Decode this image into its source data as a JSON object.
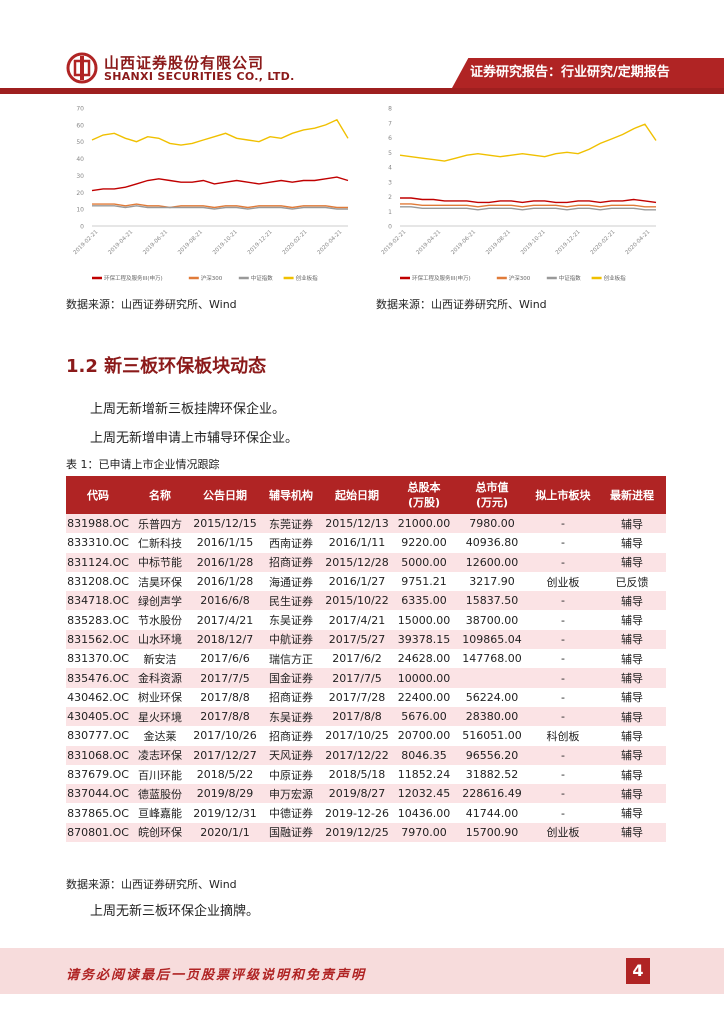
{
  "header": {
    "company_cn": "山西证券股份有限公司",
    "company_en": "SHANXI SECURITIES CO., LTD.",
    "report_tag": "证券研究报告：行业研究/定期报告",
    "brand_color": "#b02424"
  },
  "charts": {
    "chart_data": [
      {
        "type": "line",
        "y_ticks": [
          "70",
          "60",
          "50",
          "40",
          "30",
          "20",
          "10",
          "0"
        ],
        "ylim": [
          0,
          70
        ],
        "x_ticks": [
          "2019-02-21",
          "2019-04-21",
          "2019-06-21",
          "2019-08-21",
          "2019-10-21",
          "2019-12-21",
          "2020-02-21",
          "2020-04-21"
        ],
        "series": [
          {
            "name": "环保工程及服务III(申万)",
            "color": "#c00000",
            "values": [
              21,
              22,
              22,
              23,
              25,
              27,
              28,
              27,
              26,
              26,
              27,
              25,
              26,
              27,
              26,
              25,
              26,
              27,
              26,
              27,
              27,
              28,
              29,
              27
            ]
          },
          {
            "name": "沪深300",
            "color": "#e07b39",
            "values": [
              13,
              13,
              13,
              12,
              13,
              12,
              12,
              11,
              12,
              12,
              12,
              11,
              12,
              12,
              11,
              12,
              12,
              12,
              11,
              12,
              12,
              12,
              11,
              11
            ]
          },
          {
            "name": "中证指数",
            "color": "#999999",
            "values": [
              12,
              12,
              12,
              11,
              12,
              11,
              11,
              11,
              11,
              11,
              11,
              10,
              11,
              11,
              10,
              11,
              11,
              11,
              10,
              11,
              11,
              11,
              10,
              10
            ]
          },
          {
            "name": "创业板指",
            "color": "#f0c000",
            "values": [
              51,
              54,
              55,
              52,
              50,
              53,
              52,
              49,
              48,
              49,
              51,
              53,
              55,
              52,
              51,
              50,
              53,
              52,
              55,
              57,
              58,
              60,
              63,
              52
            ]
          }
        ]
      },
      {
        "type": "line",
        "y_ticks": [
          "8",
          "7",
          "6",
          "5",
          "4",
          "3",
          "2",
          "1",
          "0"
        ],
        "ylim": [
          0,
          8
        ],
        "x_ticks": [
          "2019-02-21",
          "2019-04-21",
          "2019-06-21",
          "2019-08-21",
          "2019-10-21",
          "2019-12-21",
          "2020-02-21",
          "2020-04-21"
        ],
        "series": [
          {
            "name": "环保工程及服务III(申万)",
            "color": "#c00000",
            "values": [
              1.9,
              1.9,
              1.8,
              1.8,
              1.7,
              1.7,
              1.7,
              1.6,
              1.6,
              1.7,
              1.7,
              1.6,
              1.7,
              1.7,
              1.6,
              1.6,
              1.7,
              1.7,
              1.6,
              1.7,
              1.7,
              1.8,
              1.7,
              1.6
            ]
          },
          {
            "name": "沪深300",
            "color": "#e07b39",
            "values": [
              1.5,
              1.5,
              1.4,
              1.4,
              1.4,
              1.4,
              1.4,
              1.3,
              1.4,
              1.4,
              1.4,
              1.3,
              1.4,
              1.4,
              1.4,
              1.3,
              1.4,
              1.4,
              1.3,
              1.4,
              1.4,
              1.4,
              1.3,
              1.3
            ]
          },
          {
            "name": "中证指数",
            "color": "#999999",
            "values": [
              1.3,
              1.3,
              1.2,
              1.2,
              1.2,
              1.2,
              1.2,
              1.1,
              1.2,
              1.2,
              1.2,
              1.1,
              1.2,
              1.2,
              1.2,
              1.1,
              1.2,
              1.2,
              1.1,
              1.2,
              1.2,
              1.2,
              1.1,
              1.1
            ]
          },
          {
            "name": "创业板指",
            "color": "#f0c000",
            "values": [
              4.8,
              4.7,
              4.6,
              4.5,
              4.4,
              4.6,
              4.8,
              4.9,
              4.8,
              4.7,
              4.8,
              4.9,
              4.8,
              4.7,
              4.9,
              5.0,
              4.9,
              5.2,
              5.6,
              5.9,
              6.2,
              6.6,
              6.9,
              5.8
            ]
          }
        ]
      }
    ],
    "source_left": "数据来源：山西证券研究所、Wind",
    "source_right": "数据来源：山西证券研究所、Wind"
  },
  "section": {
    "title": "1.2  新三板环保板块动态",
    "para1": "上周无新增新三板挂牌环保企业。",
    "para2": "上周无新增申请上市辅导环保企业。",
    "table_caption": "表 1：已申请上市企业情况跟踪"
  },
  "table": {
    "headers": [
      "代码",
      "名称",
      "公告日期",
      "辅导机构",
      "起始日期",
      "总股本\n(万股)",
      "总市值\n(万元)",
      "拟上市板块",
      "最新进程"
    ],
    "rows": [
      [
        "831988.OC",
        "乐普四方",
        "2015/12/15",
        "东莞证券",
        "2015/12/13",
        "21000.00",
        "7980.00",
        "-",
        "辅导"
      ],
      [
        "833310.OC",
        "仁新科技",
        "2016/1/15",
        "西南证券",
        "2016/1/11",
        "9220.00",
        "40936.80",
        "-",
        "辅导"
      ],
      [
        "831124.OC",
        "中标节能",
        "2016/1/28",
        "招商证券",
        "2015/12/28",
        "5000.00",
        "12600.00",
        "-",
        "辅导"
      ],
      [
        "831208.OC",
        "洁昊环保",
        "2016/1/28",
        "海通证券",
        "2016/1/27",
        "9751.21",
        "3217.90",
        "创业板",
        "已反馈"
      ],
      [
        "834718.OC",
        "绿创声学",
        "2016/6/8",
        "民生证券",
        "2015/10/22",
        "6335.00",
        "15837.50",
        "-",
        "辅导"
      ],
      [
        "835283.OC",
        "节水股份",
        "2017/4/21",
        "东吴证券",
        "2017/4/21",
        "15000.00",
        "38700.00",
        "-",
        "辅导"
      ],
      [
        "831562.OC",
        "山水环境",
        "2018/12/7",
        "中航证券",
        "2017/5/27",
        "39378.15",
        "109865.04",
        "-",
        "辅导"
      ],
      [
        "831370.OC",
        "新安洁",
        "2017/6/6",
        "瑞信方正",
        "2017/6/2",
        "24628.00",
        "147768.00",
        "-",
        "辅导"
      ],
      [
        "835476.OC",
        "金科资源",
        "2017/7/5",
        "国金证券",
        "2017/7/5",
        "10000.00",
        "",
        "-",
        "辅导"
      ],
      [
        "430462.OC",
        "树业环保",
        "2017/8/8",
        "招商证券",
        "2017/7/28",
        "22400.00",
        "56224.00",
        "-",
        "辅导"
      ],
      [
        "430405.OC",
        "星火环境",
        "2017/8/8",
        "东吴证券",
        "2017/8/8",
        "5676.00",
        "28380.00",
        "-",
        "辅导"
      ],
      [
        "830777.OC",
        "金达莱",
        "2017/10/26",
        "招商证券",
        "2017/10/25",
        "20700.00",
        "516051.00",
        "科创板",
        "辅导"
      ],
      [
        "831068.OC",
        "凌志环保",
        "2017/12/27",
        "天风证券",
        "2017/12/22",
        "8046.35",
        "96556.20",
        "-",
        "辅导"
      ],
      [
        "837679.OC",
        "百川环能",
        "2018/5/22",
        "中原证券",
        "2018/5/18",
        "11852.24",
        "31882.52",
        "-",
        "辅导"
      ],
      [
        "837044.OC",
        "德蓝股份",
        "2019/8/29",
        "申万宏源",
        "2019/8/27",
        "12032.45",
        "228616.49",
        "-",
        "辅导"
      ],
      [
        "837865.OC",
        "亘峰嘉能",
        "2019/12/31",
        "中德证券",
        "2019-12-26",
        "10436.00",
        "41744.00",
        "-",
        "辅导"
      ],
      [
        "870801.OC",
        "皖创环保",
        "2020/1/1",
        "国融证券",
        "2019/12/25",
        "7970.00",
        "15700.90",
        "创业板",
        "辅导"
      ]
    ]
  },
  "after_table": {
    "source": "数据来源：山西证券研究所、Wind",
    "para3": "上周无新三板环保企业摘牌。"
  },
  "footer": {
    "disclaimer": "请务必阅读最后一页股票评级说明和免责声明",
    "page_number": "4"
  }
}
